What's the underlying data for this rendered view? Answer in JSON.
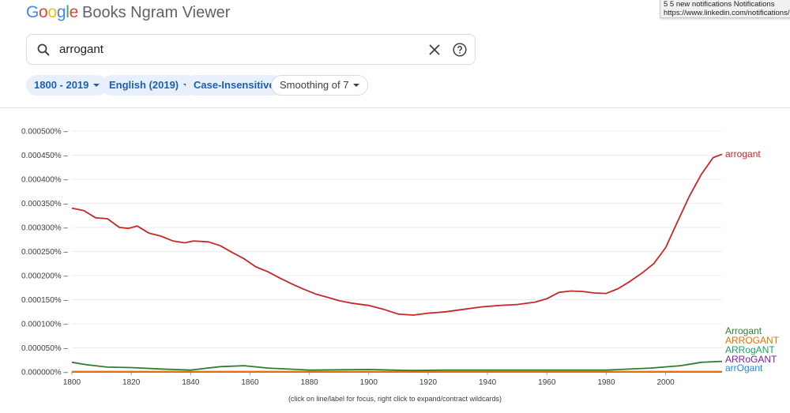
{
  "logo": {
    "brand": "Google",
    "product": "Books Ngram Viewer"
  },
  "notification_tooltip": {
    "line1": "5 5 new notifications Notifications",
    "line2": "https://www.linkedin.com/notifications/"
  },
  "search": {
    "value": "arrogant"
  },
  "filters": {
    "year_range": "1800 - 2019",
    "corpus": "English (2019)",
    "case": "Case-Insensitive",
    "smoothing": "Smoothing of 7"
  },
  "footnote": "(click on line/label for focus, right click to expand/contract wildcards)",
  "colors": {
    "accent": "#1a73e8",
    "chip_bg": "#e8f0fe"
  },
  "chart_data": {
    "type": "line",
    "xlim": [
      1800,
      2019
    ],
    "ylim": [
      0,
      0.0005
    ],
    "x_ticks": [
      "1800",
      "1820",
      "1840",
      "1860",
      "1880",
      "1900",
      "1920",
      "1940",
      "1960",
      "1980",
      "2000"
    ],
    "y_ticks": [
      "0.000000%",
      "0.000050%",
      "0.000100%",
      "0.000150%",
      "0.000200%",
      "0.000250%",
      "0.000300%",
      "0.000350%",
      "0.000400%",
      "0.000450%",
      "0.000500%"
    ],
    "grid": true,
    "legend_placement": "right, at line ends",
    "series": [
      {
        "name": "arrogant",
        "color": "#c62828",
        "points": [
          [
            1800,
            0.00034
          ],
          [
            1804,
            0.000335
          ],
          [
            1808,
            0.00032
          ],
          [
            1812,
            0.000318
          ],
          [
            1816,
            0.0003
          ],
          [
            1819,
            0.000298
          ],
          [
            1822,
            0.000303
          ],
          [
            1826,
            0.000288
          ],
          [
            1830,
            0.000282
          ],
          [
            1834,
            0.000272
          ],
          [
            1838,
            0.000268
          ],
          [
            1841,
            0.000272
          ],
          [
            1846,
            0.00027
          ],
          [
            1850,
            0.000262
          ],
          [
            1854,
            0.000248
          ],
          [
            1858,
            0.000235
          ],
          [
            1862,
            0.000218
          ],
          [
            1866,
            0.000208
          ],
          [
            1870,
            0.000195
          ],
          [
            1874,
            0.000183
          ],
          [
            1878,
            0.000172
          ],
          [
            1882,
            0.000162
          ],
          [
            1886,
            0.000155
          ],
          [
            1890,
            0.000148
          ],
          [
            1894,
            0.000143
          ],
          [
            1900,
            0.000138
          ],
          [
            1905,
            0.00013
          ],
          [
            1910,
            0.00012
          ],
          [
            1915,
            0.000118
          ],
          [
            1920,
            0.000122
          ],
          [
            1926,
            0.000125
          ],
          [
            1932,
            0.00013
          ],
          [
            1938,
            0.000135
          ],
          [
            1944,
            0.000138
          ],
          [
            1950,
            0.00014
          ],
          [
            1956,
            0.000145
          ],
          [
            1960,
            0.000152
          ],
          [
            1964,
            0.000165
          ],
          [
            1968,
            0.000168
          ],
          [
            1972,
            0.000167
          ],
          [
            1976,
            0.000164
          ],
          [
            1980,
            0.000163
          ],
          [
            1984,
            0.000173
          ],
          [
            1988,
            0.000188
          ],
          [
            1992,
            0.000205
          ],
          [
            1996,
            0.000225
          ],
          [
            2000,
            0.000258
          ],
          [
            2004,
            0.000312
          ],
          [
            2008,
            0.000365
          ],
          [
            2012,
            0.00041
          ],
          [
            2016,
            0.000445
          ],
          [
            2019,
            0.000452
          ]
        ]
      },
      {
        "name": "Arrogant",
        "color": "#2e7d32",
        "points": [
          [
            1800,
            2e-05
          ],
          [
            1805,
            1.5e-05
          ],
          [
            1812,
            1e-05
          ],
          [
            1820,
            9e-06
          ],
          [
            1830,
            6e-06
          ],
          [
            1840,
            4e-06
          ],
          [
            1850,
            1.1e-05
          ],
          [
            1858,
            1.3e-05
          ],
          [
            1866,
            8e-06
          ],
          [
            1880,
            4e-06
          ],
          [
            1900,
            5e-06
          ],
          [
            1915,
            3e-06
          ],
          [
            1925,
            4e-06
          ],
          [
            1940,
            4e-06
          ],
          [
            1960,
            4e-06
          ],
          [
            1980,
            4e-06
          ],
          [
            1995,
            8e-06
          ],
          [
            2005,
            1.3e-05
          ],
          [
            2012,
            2e-05
          ],
          [
            2019,
            2.2e-05
          ]
        ]
      },
      {
        "name": "ARROGANT",
        "color": "#e8710a",
        "points": [
          [
            1800,
            5e-07
          ],
          [
            2019,
            5e-07
          ]
        ]
      },
      {
        "name": "ARRogANT",
        "color": "#1aa260",
        "points": [
          [
            1800,
            4e-07
          ],
          [
            2019,
            4e-07
          ]
        ]
      },
      {
        "name": "ARRoGANT",
        "color": "#7b1fa2",
        "points": [
          [
            1800,
            3e-07
          ],
          [
            2019,
            3e-07
          ]
        ]
      },
      {
        "name": "arrOgant",
        "color": "#1e88e5",
        "points": [
          [
            1800,
            2e-07
          ],
          [
            2019,
            2e-07
          ]
        ]
      }
    ]
  }
}
